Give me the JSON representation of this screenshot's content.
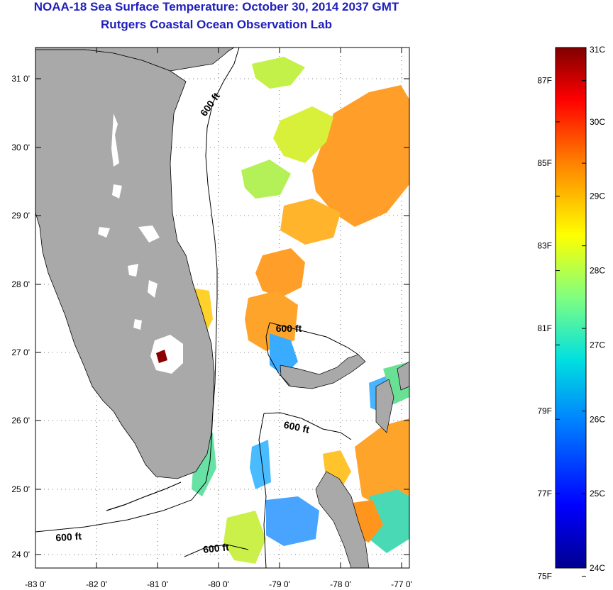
{
  "title": "NOAA-18 Sea Surface Temperature:  October 30, 2014 2037 GMT",
  "subtitle": "Rutgers Coastal Ocean Observation Lab",
  "map": {
    "lat_ticks": [
      "31 0'",
      "30 0'",
      "29 0'",
      "28 0'",
      "27 0'",
      "26 0'",
      "25 0'",
      "24 0'"
    ],
    "lon_ticks": [
      "-83 0'",
      "-82 0'",
      "-81 0'",
      "-80 0'",
      "-79 0'",
      "-78 0'",
      "-77 0'"
    ],
    "contour_label": "600 ft",
    "land_color": "#a9a9a9"
  },
  "colorbar": {
    "celsius_labels": [
      "31C",
      "30C",
      "29C",
      "28C",
      "27C",
      "26C",
      "25C",
      "24C"
    ],
    "fahrenheit_labels": [
      "87F",
      "85F",
      "83F",
      "81F",
      "79F",
      "77F",
      "75F"
    ],
    "range_c": [
      24,
      31
    ]
  }
}
